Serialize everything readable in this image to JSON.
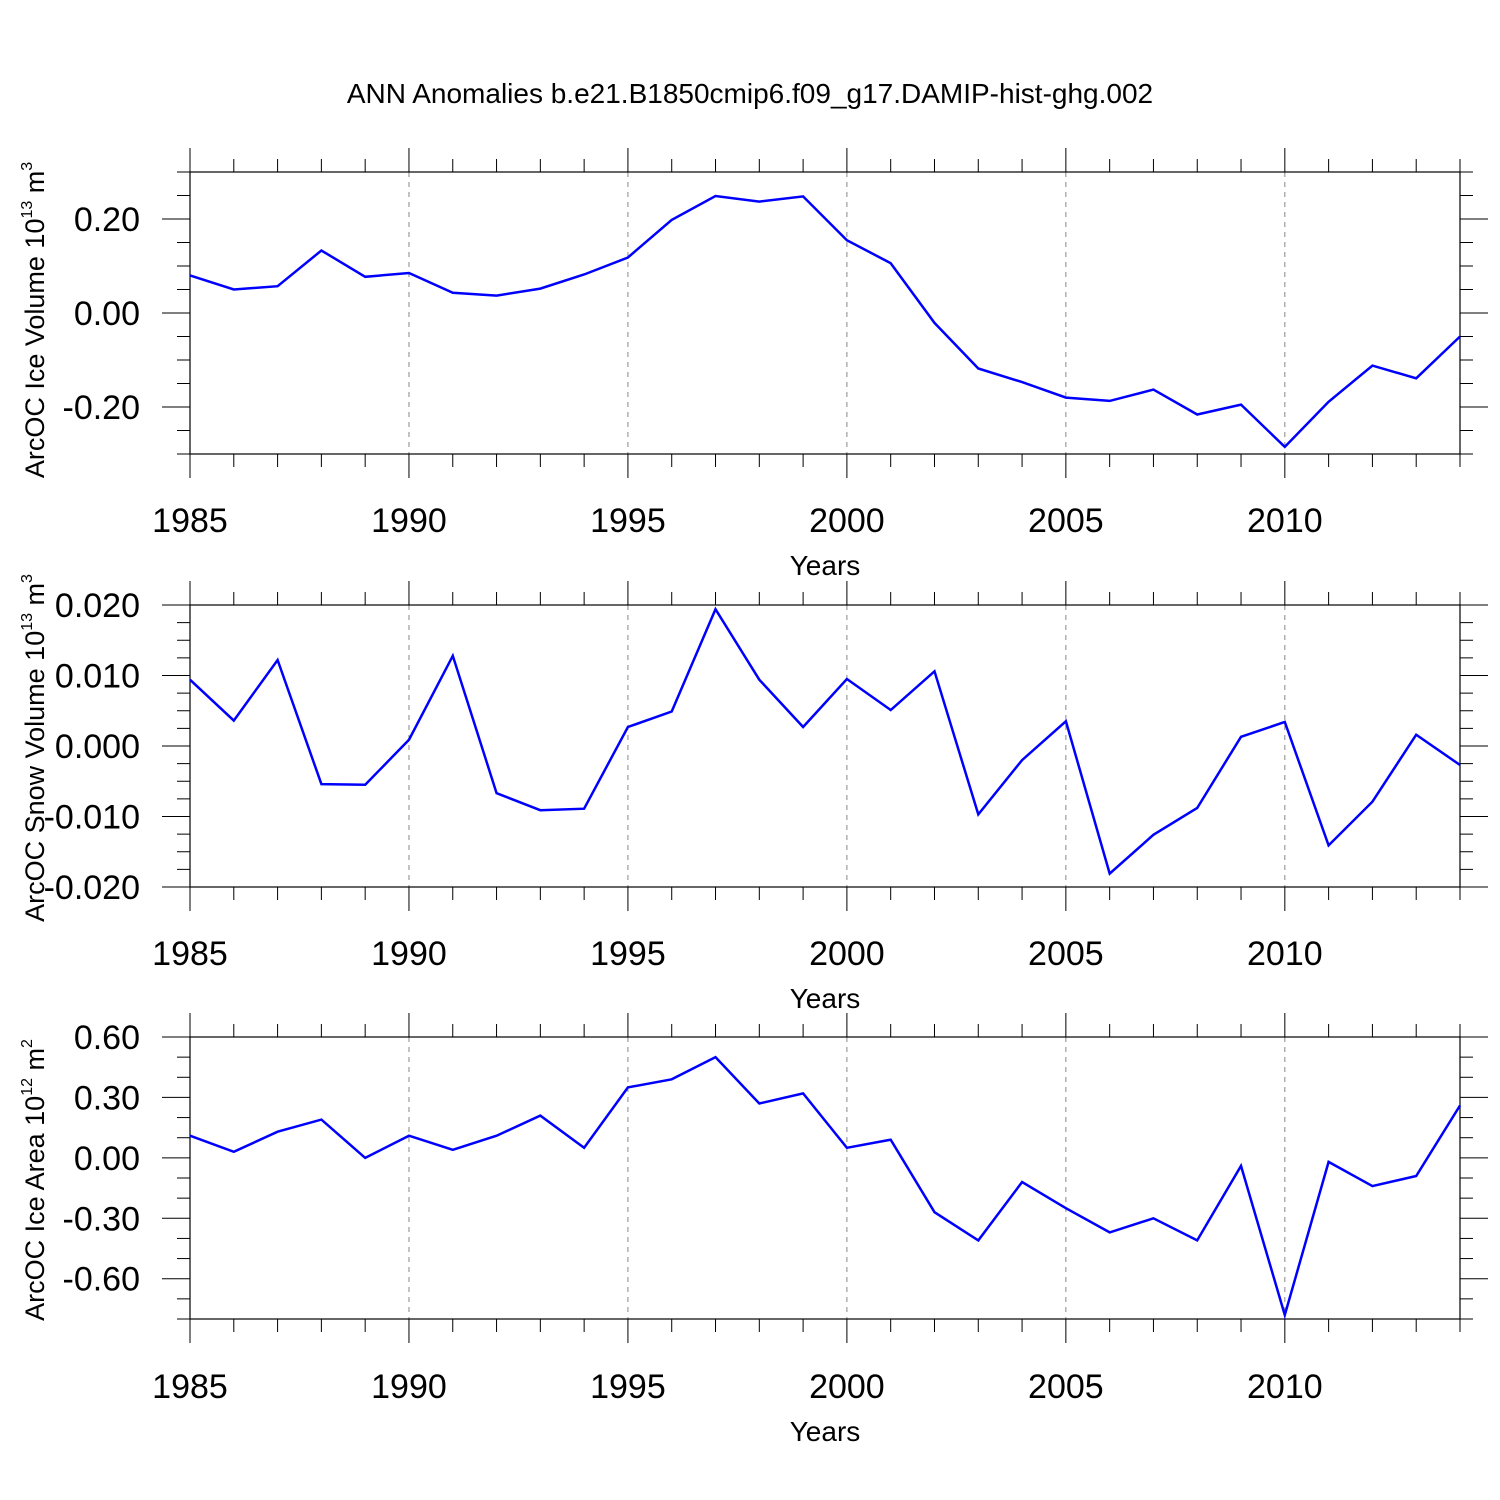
{
  "title": "ANN Anomalies b.e21.B1850cmip6.f09_g17.DAMIP-hist-ghg.002",
  "chart_data": [
    {
      "type": "line",
      "title": "",
      "xlabel": "Years",
      "ylabel": {
        "main": "ArcOC Ice Volume 10",
        "sup": "13",
        "unit": " m",
        "unit_sup": "3"
      },
      "xlim": [
        1985,
        2014
      ],
      "ylim": [
        -0.3,
        0.3
      ],
      "xticks": [
        1985,
        1990,
        1995,
        2000,
        2005,
        2010
      ],
      "xtick_labels": [
        "1985",
        "1990",
        "1995",
        "2000",
        "2005",
        "2010"
      ],
      "yticks": [
        -0.2,
        0.0,
        0.2
      ],
      "ytick_labels": [
        "-0.20",
        "0.00",
        "0.20"
      ],
      "y_minor_step": 0.05,
      "grid": "vertical dashed at labeled years",
      "line_color": "#0000ff",
      "series": [
        {
          "x": [
            1985,
            1986,
            1987,
            1988,
            1989,
            1990,
            1991,
            1992,
            1993,
            1994,
            1995,
            1996,
            1997,
            1998,
            1999,
            2000,
            2001,
            2002,
            2003,
            2004,
            2005,
            2006,
            2007,
            2008,
            2009,
            2010,
            2011,
            2012,
            2013,
            2014
          ],
          "values": [
            0.08,
            0.05,
            0.057,
            0.133,
            0.077,
            0.085,
            0.043,
            0.037,
            0.052,
            0.082,
            0.118,
            0.198,
            0.249,
            0.237,
            0.248,
            0.155,
            0.106,
            -0.021,
            -0.118,
            -0.147,
            -0.18,
            -0.187,
            -0.163,
            -0.216,
            -0.195,
            -0.285,
            -0.189,
            -0.112,
            -0.139,
            -0.05
          ]
        }
      ]
    },
    {
      "type": "line",
      "title": "",
      "xlabel": "Years",
      "ylabel": {
        "main": "ArcOC Snow Volume 10",
        "sup": "13",
        "unit": " m",
        "unit_sup": "3"
      },
      "xlim": [
        1985,
        2014
      ],
      "ylim": [
        -0.02,
        0.02
      ],
      "xticks": [
        1985,
        1990,
        1995,
        2000,
        2005,
        2010
      ],
      "xtick_labels": [
        "1985",
        "1990",
        "1995",
        "2000",
        "2005",
        "2010"
      ],
      "yticks": [
        -0.02,
        -0.01,
        0.0,
        0.01,
        0.02
      ],
      "ytick_labels": [
        "-0.020",
        "-0.010",
        "0.000",
        "0.010",
        "0.020"
      ],
      "y_minor_step": 0.0025,
      "grid": "vertical dashed at labeled years",
      "line_color": "#0000ff",
      "series": [
        {
          "x": [
            1985,
            1986,
            1987,
            1988,
            1989,
            1990,
            1991,
            1992,
            1993,
            1994,
            1995,
            1996,
            1997,
            1998,
            1999,
            2000,
            2001,
            2002,
            2003,
            2004,
            2005,
            2006,
            2007,
            2008,
            2009,
            2010,
            2011,
            2012,
            2013,
            2014
          ],
          "values": [
            0.0094,
            0.0036,
            0.0122,
            -0.0054,
            -0.0055,
            0.0009,
            0.0128,
            -0.0067,
            -0.0091,
            -0.0089,
            0.0027,
            0.0049,
            0.0194,
            0.0094,
            0.0027,
            0.0095,
            0.0051,
            0.0106,
            -0.0097,
            -0.002,
            0.0035,
            -0.0181,
            -0.0126,
            -0.0088,
            0.0013,
            0.0034,
            -0.0141,
            -0.0079,
            0.0016,
            -0.0027
          ]
        }
      ]
    },
    {
      "type": "line",
      "title": "",
      "xlabel": "Years",
      "ylabel": {
        "main": "ArcOC Ice Area 10",
        "sup": "12",
        "unit": " m",
        "unit_sup": "2"
      },
      "xlim": [
        1985,
        2014
      ],
      "ylim": [
        -0.8,
        0.6
      ],
      "xticks": [
        1985,
        1990,
        1995,
        2000,
        2005,
        2010
      ],
      "xtick_labels": [
        "1985",
        "1990",
        "1995",
        "2000",
        "2005",
        "2010"
      ],
      "yticks": [
        -0.6,
        -0.3,
        0.0,
        0.3,
        0.6
      ],
      "ytick_labels": [
        "-0.60",
        "-0.30",
        "0.00",
        "0.30",
        "0.60"
      ],
      "y_minor_step": 0.1,
      "grid": "vertical dashed at labeled years",
      "line_color": "#0000ff",
      "series": [
        {
          "x": [
            1985,
            1986,
            1987,
            1988,
            1989,
            1990,
            1991,
            1992,
            1993,
            1994,
            1995,
            1996,
            1997,
            1998,
            1999,
            2000,
            2001,
            2002,
            2003,
            2004,
            2005,
            2006,
            2007,
            2008,
            2009,
            2010,
            2011,
            2012,
            2013,
            2014
          ],
          "values": [
            0.11,
            0.03,
            0.13,
            0.19,
            0.0,
            0.11,
            0.04,
            0.11,
            0.21,
            0.05,
            0.35,
            0.39,
            0.5,
            0.27,
            0.32,
            0.05,
            0.09,
            -0.27,
            -0.41,
            -0.12,
            -0.25,
            -0.37,
            -0.3,
            -0.41,
            -0.04,
            -0.78,
            -0.02,
            -0.14,
            -0.09,
            0.26
          ]
        }
      ]
    }
  ]
}
